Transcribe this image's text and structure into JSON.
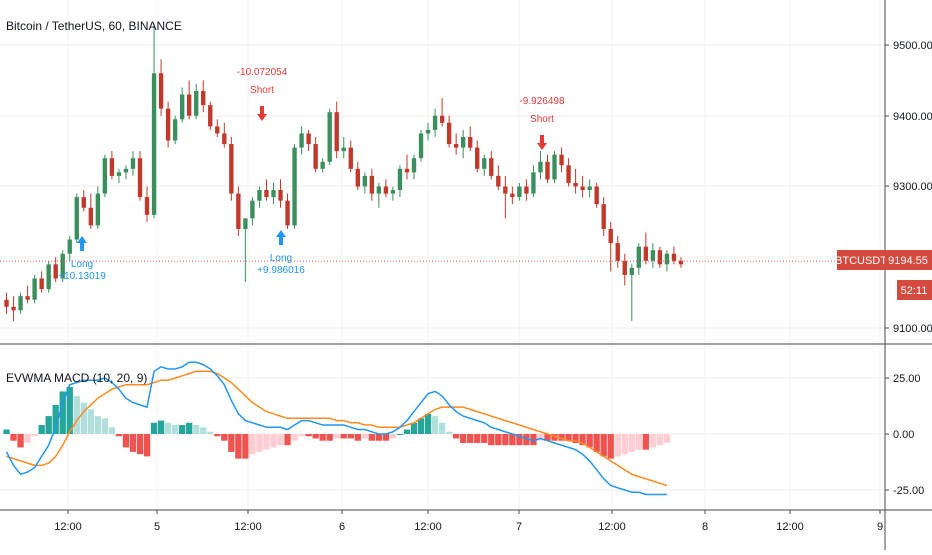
{
  "symbol_title": "Bitcoin / TetherUS, 60, BINANCE",
  "indicator_title": "EVWMA MACD (10, 20, 9)",
  "colors": {
    "up": "#26a69a",
    "up_body": "#3a8f5d",
    "down": "#c0392b",
    "price_line": "#e05a4d",
    "badge": "#d44a3f",
    "macd_line": "#2196f3",
    "signal_line": "#ff8a20",
    "hist_up_strong": "#26a69a",
    "hist_up_weak": "#b2dfdb",
    "hist_down_strong": "#ef5350",
    "hist_down_weak": "#ffcdd2",
    "long_signal": "#2196f3",
    "short_signal": "#e53935"
  },
  "price_axis": {
    "ticks": [
      "9500.00",
      "9400.00",
      "9300.00",
      "9100.00"
    ],
    "current_symbol": "BTCUSDT",
    "current_price": "9194.55",
    "countdown": "52:11"
  },
  "macd_axis": {
    "ticks": [
      "25.00",
      "0.00",
      "-25.00"
    ]
  },
  "time_axis": {
    "labels": [
      "12:00",
      "5",
      "12:00",
      "6",
      "12:00",
      "7",
      "12:00",
      "8",
      "12:00",
      "9"
    ]
  },
  "signals": [
    {
      "type": "Long",
      "label": "Long",
      "value": "+10.13019"
    },
    {
      "type": "Short",
      "label": "Short",
      "value": "-10.072054"
    },
    {
      "type": "Long",
      "label": "Long",
      "value": "+9.986016"
    },
    {
      "type": "Short",
      "label": "Short",
      "value": "-9.926498"
    }
  ],
  "chart_data": [
    {
      "type": "candlestick",
      "title": "Bitcoin / TetherUS, 60, BINANCE",
      "y_range": [
        9085,
        9580
      ],
      "current_price": 9194.55,
      "candles": [
        [
          9140,
          9150,
          9120,
          9130
        ],
        [
          9130,
          9145,
          9110,
          9125
        ],
        [
          9125,
          9150,
          9120,
          9145
        ],
        [
          9145,
          9160,
          9135,
          9140
        ],
        [
          9140,
          9175,
          9135,
          9170
        ],
        [
          9170,
          9180,
          9150,
          9155
        ],
        [
          9155,
          9195,
          9150,
          9190
        ],
        [
          9190,
          9200,
          9165,
          9170
        ],
        [
          9170,
          9210,
          9165,
          9205
        ],
        [
          9205,
          9230,
          9195,
          9225
        ],
        [
          9225,
          9290,
          9220,
          9285
        ],
        [
          9285,
          9295,
          9265,
          9270
        ],
        [
          9270,
          9290,
          9240,
          9245
        ],
        [
          9245,
          9300,
          9240,
          9290
        ],
        [
          9290,
          9345,
          9285,
          9340
        ],
        [
          9340,
          9350,
          9310,
          9315
        ],
        [
          9315,
          9325,
          9305,
          9320
        ],
        [
          9320,
          9330,
          9310,
          9325
        ],
        [
          9325,
          9350,
          9315,
          9340
        ],
        [
          9340,
          9350,
          9280,
          9285
        ],
        [
          9285,
          9300,
          9250,
          9260
        ],
        [
          9260,
          9530,
          9255,
          9460
        ],
        [
          9460,
          9480,
          9400,
          9410
        ],
        [
          9410,
          9420,
          9355,
          9365
        ],
        [
          9365,
          9400,
          9360,
          9395
        ],
        [
          9395,
          9440,
          9390,
          9430
        ],
        [
          9430,
          9450,
          9395,
          9400
        ],
        [
          9400,
          9445,
          9395,
          9435
        ],
        [
          9435,
          9450,
          9405,
          9415
        ],
        [
          9415,
          9420,
          9380,
          9385
        ],
        [
          9385,
          9395,
          9370,
          9375
        ],
        [
          9375,
          9390,
          9355,
          9360
        ],
        [
          9360,
          9370,
          9280,
          9290
        ],
        [
          9290,
          9300,
          9230,
          9240
        ],
        [
          9240,
          9255,
          9165,
          9255
        ],
        [
          9255,
          9285,
          9245,
          9280
        ],
        [
          9280,
          9300,
          9270,
          9295
        ],
        [
          9295,
          9310,
          9280,
          9285
        ],
        [
          9285,
          9305,
          9275,
          9295
        ],
        [
          9295,
          9310,
          9270,
          9280
        ],
        [
          9280,
          9290,
          9240,
          9245
        ],
        [
          9245,
          9360,
          9240,
          9355
        ],
        [
          9355,
          9385,
          9345,
          9375
        ],
        [
          9375,
          9380,
          9350,
          9360
        ],
        [
          9360,
          9370,
          9320,
          9325
        ],
        [
          9325,
          9340,
          9320,
          9335
        ],
        [
          9335,
          9410,
          9330,
          9405
        ],
        [
          9405,
          9420,
          9340,
          9350
        ],
        [
          9350,
          9370,
          9340,
          9355
        ],
        [
          9355,
          9365,
          9320,
          9325
        ],
        [
          9325,
          9335,
          9295,
          9300
        ],
        [
          9300,
          9320,
          9290,
          9315
        ],
        [
          9315,
          9325,
          9280,
          9290
        ],
        [
          9290,
          9305,
          9270,
          9300
        ],
        [
          9300,
          9310,
          9285,
          9290
        ],
        [
          9290,
          9300,
          9280,
          9295
        ],
        [
          9295,
          9330,
          9285,
          9325
        ],
        [
          9325,
          9345,
          9310,
          9320
        ],
        [
          9320,
          9345,
          9310,
          9340
        ],
        [
          9340,
          9380,
          9335,
          9375
        ],
        [
          9375,
          9390,
          9365,
          9380
        ],
        [
          9380,
          9410,
          9370,
          9400
        ],
        [
          9400,
          9425,
          9385,
          9390
        ],
        [
          9390,
          9400,
          9355,
          9360
        ],
        [
          9360,
          9375,
          9345,
          9355
        ],
        [
          9355,
          9380,
          9340,
          9370
        ],
        [
          9370,
          9385,
          9350,
          9355
        ],
        [
          9355,
          9365,
          9320,
          9325
        ],
        [
          9325,
          9345,
          9315,
          9340
        ],
        [
          9340,
          9350,
          9310,
          9315
        ],
        [
          9315,
          9330,
          9295,
          9300
        ],
        [
          9300,
          9315,
          9255,
          9290
        ],
        [
          9290,
          9300,
          9275,
          9285
        ],
        [
          9285,
          9305,
          9280,
          9300
        ],
        [
          9300,
          9310,
          9280,
          9290
        ],
        [
          9290,
          9330,
          9285,
          9320
        ],
        [
          9320,
          9350,
          9310,
          9335
        ],
        [
          9335,
          9345,
          9305,
          9310
        ],
        [
          9310,
          9350,
          9305,
          9345
        ],
        [
          9345,
          9355,
          9320,
          9330
        ],
        [
          9330,
          9340,
          9300,
          9305
        ],
        [
          9305,
          9325,
          9290,
          9300
        ],
        [
          9300,
          9315,
          9285,
          9295
        ],
        [
          9295,
          9310,
          9285,
          9300
        ],
        [
          9300,
          9305,
          9270,
          9275
        ],
        [
          9275,
          9285,
          9230,
          9240
        ],
        [
          9240,
          9250,
          9180,
          9220
        ],
        [
          9220,
          9230,
          9185,
          9195
        ],
        [
          9195,
          9205,
          9160,
          9175
        ],
        [
          9175,
          9190,
          9110,
          9185
        ],
        [
          9185,
          9220,
          9175,
          9215
        ],
        [
          9215,
          9235,
          9190,
          9195
        ],
        [
          9195,
          9220,
          9185,
          9210
        ],
        [
          9210,
          9215,
          9185,
          9190
        ],
        [
          9190,
          9210,
          9180,
          9205
        ],
        [
          9205,
          9215,
          9190,
          9195
        ],
        [
          9195,
          9200,
          9185,
          9190
        ]
      ]
    },
    {
      "type": "line+histogram",
      "title": "EVWMA MACD (10, 20, 9)",
      "y_range": [
        -30,
        38
      ],
      "series": [
        {
          "name": "",
          "values": [
            -8,
            -14,
            -18,
            -17,
            -15,
            -10,
            -5,
            3,
            14,
            22,
            23,
            24,
            24,
            24,
            25,
            23,
            20,
            16,
            14,
            13,
            12,
            28,
            30,
            29,
            29,
            30,
            32,
            32,
            31,
            29,
            26,
            22,
            15,
            9,
            6,
            5,
            4,
            3,
            3,
            3,
            2,
            4,
            6,
            6,
            5,
            4,
            4,
            4,
            4,
            3,
            2,
            2,
            1,
            0,
            0,
            1,
            3,
            6,
            10,
            14,
            18,
            19,
            17,
            13,
            10,
            8,
            7,
            6,
            5,
            3,
            2,
            1,
            0,
            -1,
            -2,
            -3,
            -2,
            -3,
            -4,
            -5,
            -6,
            -7,
            -9,
            -12,
            -16,
            -20,
            -23,
            -24,
            -25,
            -26,
            -26,
            -27,
            -27,
            -27,
            -27
          ]
        },
        {
          "name": "",
          "values": [
            -10,
            -11,
            -12,
            -13,
            -14,
            -14,
            -13,
            -10,
            -5,
            1,
            6,
            10,
            13,
            16,
            18,
            20,
            21,
            22,
            22,
            22,
            22,
            23,
            24,
            24,
            25,
            26,
            27,
            28,
            28,
            28,
            27,
            25,
            23,
            20,
            17,
            14,
            12,
            10,
            9,
            8,
            7,
            7,
            7,
            7,
            7,
            7,
            7,
            6,
            6,
            5,
            5,
            4,
            4,
            3,
            3,
            3,
            3,
            4,
            5,
            7,
            9,
            11,
            12,
            12,
            12,
            12,
            11,
            10,
            9,
            8,
            7,
            6,
            5,
            4,
            3,
            2,
            1,
            0,
            -1,
            -2,
            -3,
            -3,
            -4,
            -6,
            -8,
            -10,
            -12,
            -14,
            -16,
            -18,
            -19,
            -20,
            -21,
            -22,
            -23
          ]
        },
        {
          "name": "",
          "values": [
            2,
            -3,
            -6,
            -4,
            -1,
            4,
            8,
            13,
            19,
            21,
            17,
            14,
            11,
            8,
            7,
            3,
            -1,
            -6,
            -8,
            -9,
            -10,
            5,
            6,
            5,
            4,
            4,
            5,
            4,
            3,
            1,
            -1,
            -3,
            -8,
            -11,
            -11,
            -9,
            -8,
            -7,
            -6,
            -5,
            -5,
            -3,
            -1,
            -1,
            -2,
            -3,
            -3,
            -2,
            -2,
            -2,
            -3,
            -2,
            -3,
            -3,
            -3,
            -2,
            0,
            2,
            5,
            7,
            9,
            8,
            5,
            1,
            -2,
            -4,
            -4,
            -4,
            -4,
            -5,
            -5,
            -5,
            -5,
            -5,
            -5,
            -5,
            -3,
            -3,
            -3,
            -3,
            -3,
            -4,
            -5,
            -6,
            -8,
            -10,
            -11,
            -10,
            -9,
            -8,
            -7,
            -7,
            -6,
            -5,
            -4
          ]
        }
      ]
    }
  ]
}
